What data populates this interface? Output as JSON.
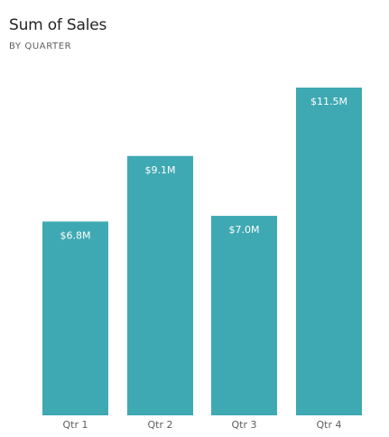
{
  "chart_data": {
    "type": "bar",
    "title": "Sum of Sales",
    "subtitle": "BY QUARTER",
    "categories": [
      "Qtr 1",
      "Qtr 2",
      "Qtr 3",
      "Qtr 4"
    ],
    "values": [
      6.8,
      9.1,
      7.0,
      11.5
    ],
    "data_labels": [
      "$6.8M",
      "$9.1M",
      "$7.0M",
      "$11.5M"
    ],
    "ylim": [
      0,
      11.5
    ],
    "grid": false,
    "colors": {
      "bar": "#3fa9b3",
      "bar_label": "#ffffff",
      "tick_label": "#605e5c"
    }
  }
}
